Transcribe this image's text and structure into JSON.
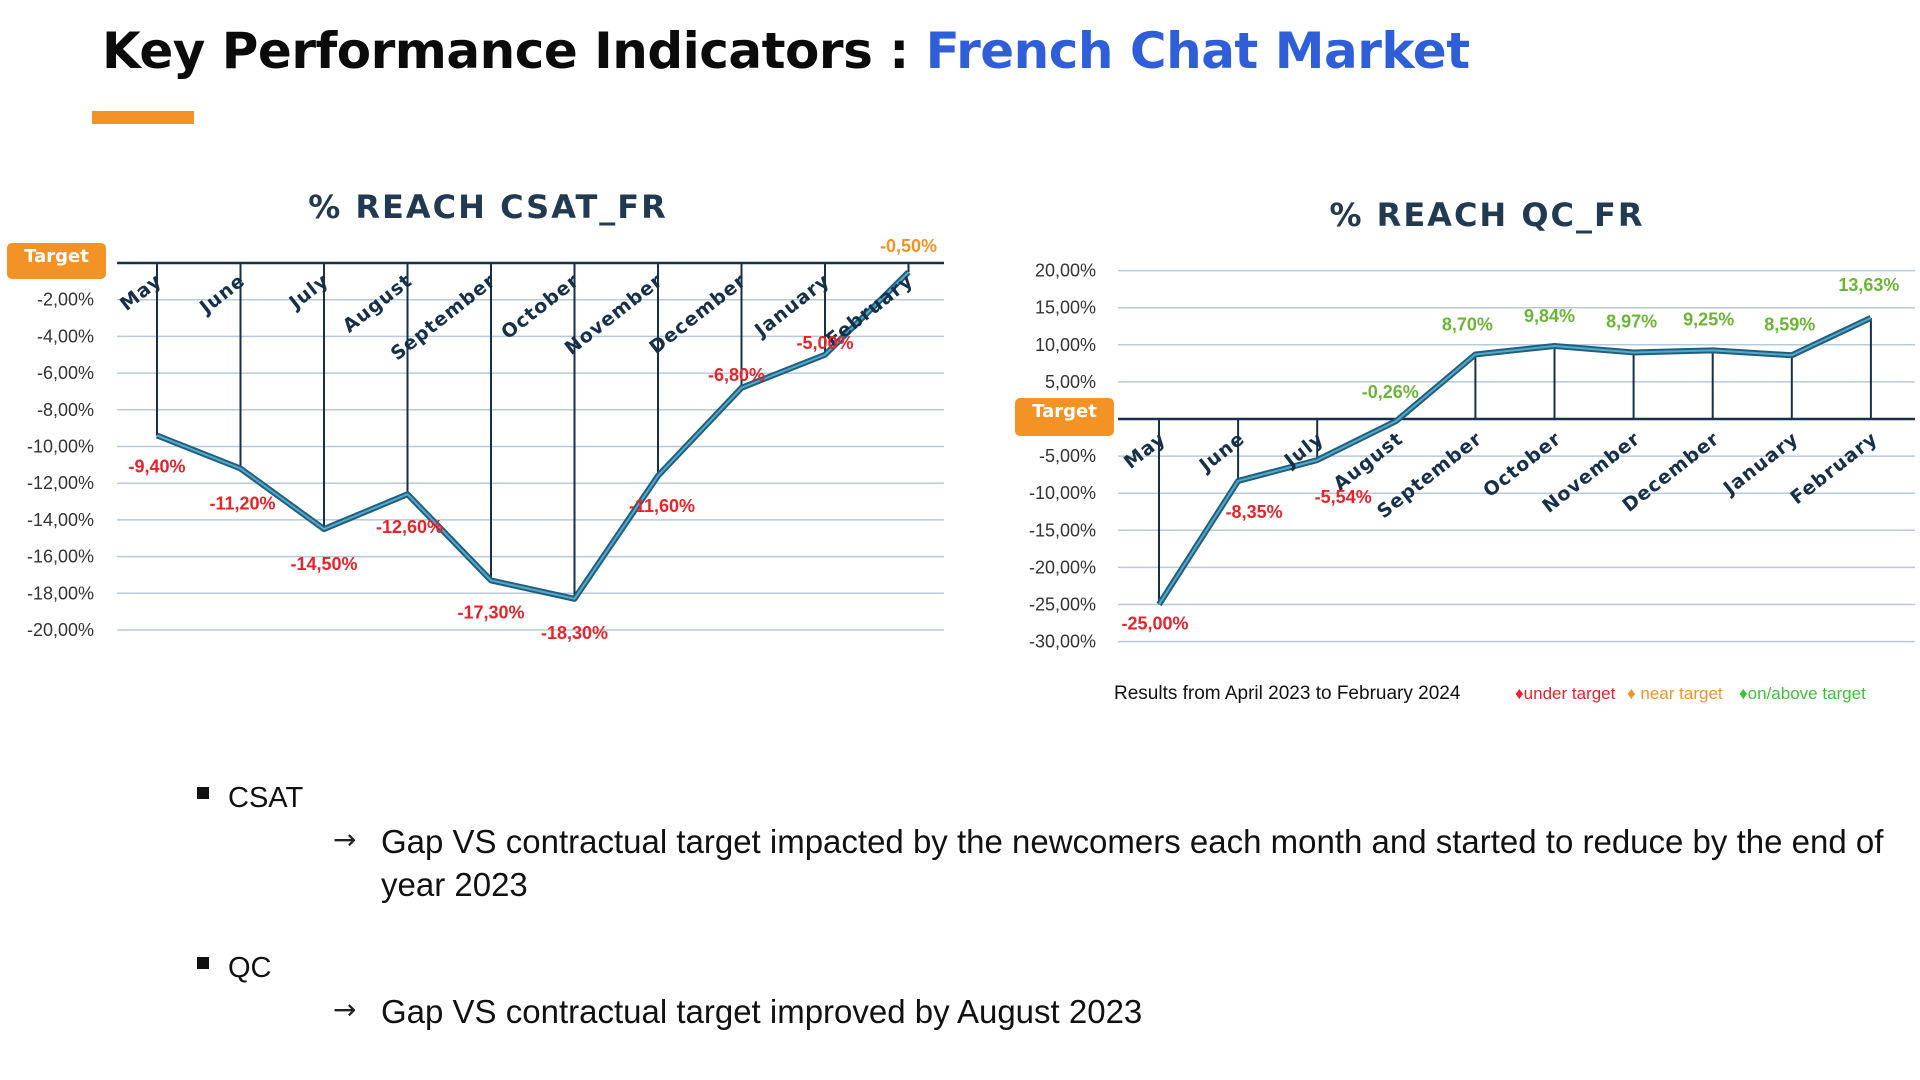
{
  "slide": {
    "title_main": "Key Performance Indicators : ",
    "title_accent": "French Chat Market",
    "underline_color": "#f39325"
  },
  "chart_data": [
    {
      "type": "line",
      "title": "% REACH CSAT_FR",
      "target_label": "Target",
      "categories": [
        "May",
        "June",
        "July",
        "August",
        "September",
        "October",
        "November",
        "December",
        "January",
        "February"
      ],
      "series": [
        {
          "values": [
            -9.4,
            -11.2,
            -14.5,
            -12.6,
            -17.3,
            -18.3,
            -11.6,
            -6.8,
            -5.0,
            -0.5
          ]
        }
      ],
      "data_labels": [
        "-9,40%",
        "-11,20%",
        "-14,50%",
        "-12,60%",
        "-17,30%",
        "-18,30%",
        "-11,60%",
        "-6,80%",
        "-5,00%",
        "-0,50%"
      ],
      "label_colors": [
        "#e8232a",
        "#e8232a",
        "#e8232a",
        "#e8232a",
        "#e8232a",
        "#e8232a",
        "#e8232a",
        "#e8232a",
        "#e8232a",
        "#f39325"
      ],
      "y_ticks": [
        "-2,00%",
        "-4,00%",
        "-6,00%",
        "-8,00%",
        "-10,00%",
        "-12,00%",
        "-14,00%",
        "-16,00%",
        "-18,00%",
        "-20,00%"
      ],
      "ylim": [
        -20,
        0
      ],
      "grid": true
    },
    {
      "type": "line",
      "title": "% REACH QC_FR",
      "target_label": "Target",
      "categories": [
        "May",
        "June",
        "July",
        "August",
        "September",
        "October",
        "November",
        "December",
        "January",
        "February"
      ],
      "series": [
        {
          "values": [
            -25.0,
            -8.35,
            -5.54,
            -0.26,
            8.7,
            9.84,
            8.97,
            9.25,
            8.59,
            13.63
          ]
        }
      ],
      "data_labels": [
        "-25,00%",
        "-8,35%",
        "-5,54%",
        "-0,26%",
        "8,70%",
        "9,84%",
        "8,97%",
        "9,25%",
        "8,59%",
        "13,63%"
      ],
      "label_colors": [
        "#e8232a",
        "#e8232a",
        "#e8232a",
        "#6bb536",
        "#6bb536",
        "#6bb536",
        "#6bb536",
        "#6bb536",
        "#6bb536",
        "#6bb536"
      ],
      "y_ticks": [
        "20,00%",
        "15,00%",
        "10,00%",
        "5,00%",
        "-5,00%",
        "-10,00%",
        "-15,00%",
        "-20,00%",
        "-25,00%",
        "-30,00%"
      ],
      "ylim": [
        -30,
        20
      ],
      "grid": true,
      "footnote": "Results from April 2023 to February 2024",
      "legend": [
        {
          "text": "♦under target",
          "color": "#e8232a"
        },
        {
          "text": " ♦ near target",
          "color": "#f39325"
        },
        {
          "text": " ♦on/above target",
          "color": "#3ec03a"
        }
      ]
    }
  ],
  "bullets": [
    {
      "label": "CSAT",
      "arrow": "→",
      "text": "Gap VS contractual target impacted by the newcomers each month and started to reduce by the end of year 2023"
    },
    {
      "label": "QC",
      "arrow": "→",
      "text": "Gap VS contractual target improved by August 2023"
    }
  ],
  "colors": {
    "line": "#1f5f80",
    "line_highlight": "#57a9c9",
    "axis": "#17304a",
    "grid": "#b9c9d9",
    "target_badge": "#f39325",
    "chart_title": "#213a52"
  }
}
